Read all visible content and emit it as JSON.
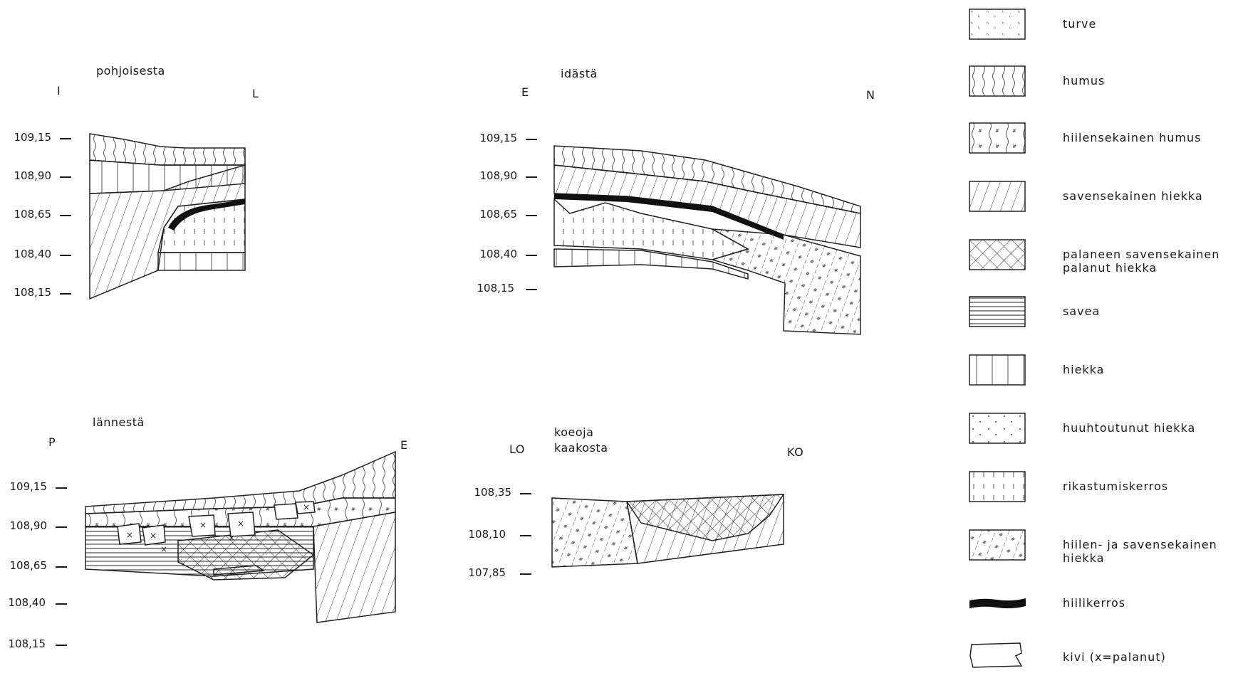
{
  "profiles": {
    "north": {
      "title": "pohjoisesta",
      "left_dir": "I",
      "right_dir": "L",
      "elevations": [
        "109,15",
        "108,90",
        "108,65",
        "108,40",
        "108,15"
      ]
    },
    "east": {
      "title": "idästä",
      "left_dir": "E",
      "right_dir": "N",
      "elevations": [
        "109,15",
        "108,90",
        "108,65",
        "108,40",
        "108,15"
      ]
    },
    "west": {
      "title": "lännestä",
      "left_dir": "P",
      "right_dir": "E",
      "elevations": [
        "109,15",
        "108,90",
        "108,65",
        "108,40",
        "108,15"
      ]
    },
    "trench": {
      "title_line1": "koeoja",
      "title_line2": "kaakosta",
      "left_dir": "LO",
      "right_dir": "KO",
      "elevations": [
        "108,35",
        "108,10",
        "107,85"
      ]
    }
  },
  "legend": [
    {
      "label": "turve",
      "pattern": "peat-icon"
    },
    {
      "label": "humus",
      "pattern": "humus-icon"
    },
    {
      "label": "hiilensekainen humus",
      "pattern": "charcoal-humus-icon"
    },
    {
      "label": "savensekainen hiekka",
      "pattern": "clayey-sand-icon"
    },
    {
      "label": "palaneen savensekainen palanut hiekka",
      "pattern": "burnt-sand-icon"
    },
    {
      "label": "savea",
      "pattern": "clay-icon"
    },
    {
      "label": "hiekka",
      "pattern": "sand-icon"
    },
    {
      "label": "huuhtoutunut hiekka",
      "pattern": "leached-sand-icon"
    },
    {
      "label": "rikastumiskerros",
      "pattern": "enrichment-layer-icon"
    },
    {
      "label": "hiilen- ja savensekainen hiekka",
      "pattern": "charcoal-clay-sand-icon"
    },
    {
      "label": "hiilikerros",
      "pattern": "charcoal-layer-icon"
    },
    {
      "label": "kivi (x=palanut)",
      "pattern": "stone-icon"
    }
  ]
}
